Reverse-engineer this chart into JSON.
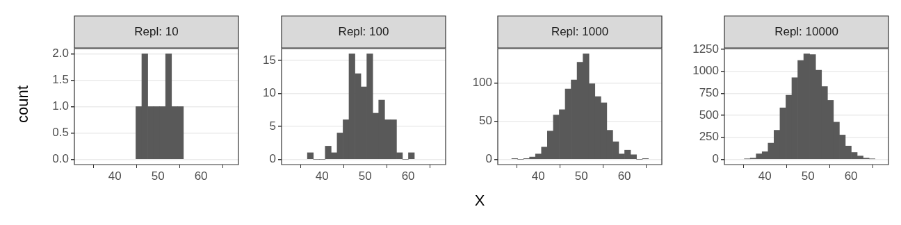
{
  "chart_data": [
    {
      "type": "histogram",
      "title": "Repl: 10",
      "ylabel": "count",
      "color": "#595959",
      "grid": "y",
      "xlim": [
        30.6,
        68.7
      ],
      "xticks": [
        40,
        50,
        60
      ],
      "ylim": [
        -0.1,
        2.1
      ],
      "yticks": [
        {
          "value": 0,
          "label": "0.0"
        },
        {
          "value": 0.5,
          "label": "0.5"
        },
        {
          "value": 1,
          "label": "1.0"
        },
        {
          "value": 1.5,
          "label": "1.5"
        },
        {
          "value": 2,
          "label": "2.0"
        }
      ],
      "bins": [
        44.88,
        46.26,
        47.64,
        49.02,
        50.4,
        51.78,
        53.16,
        54.54,
        55.92
      ],
      "values": [
        1,
        2,
        1,
        1,
        1,
        2,
        1,
        1
      ]
    },
    {
      "type": "histogram",
      "title": "Repl: 100",
      "color": "#595959",
      "grid": "y",
      "xlim": [
        30.6,
        68.7
      ],
      "xticks": [
        40,
        50,
        60
      ],
      "ylim": [
        -0.8,
        16.8
      ],
      "yticks": [
        0,
        5,
        10,
        15
      ],
      "bins": [
        36.6,
        37.98,
        39.36,
        40.74,
        42.12,
        43.5,
        44.88,
        46.26,
        47.64,
        49.02,
        50.4,
        51.78,
        53.16,
        54.54,
        55.92,
        57.3,
        58.68,
        60.06,
        61.44
      ],
      "values": [
        1,
        0,
        0,
        2,
        1,
        4,
        6,
        16,
        13,
        11,
        16,
        7,
        9,
        6,
        6,
        1,
        0,
        1
      ]
    },
    {
      "type": "histogram",
      "title": "Repl: 1000",
      "xlabel": "X",
      "color": "#595959",
      "grid": "y",
      "xlim": [
        30.6,
        68.7
      ],
      "xticks": [
        40,
        50,
        60
      ],
      "ylim": [
        -6.9,
        144.9
      ],
      "yticks": [
        0,
        50,
        100
      ],
      "bins": [
        33.84,
        35.22,
        36.6,
        37.98,
        39.36,
        40.74,
        42.12,
        43.5,
        44.88,
        46.26,
        47.64,
        49.02,
        50.4,
        51.78,
        53.16,
        54.54,
        55.92,
        57.3,
        58.68,
        60.06,
        61.44,
        62.82,
        64.2,
        65.58
      ],
      "values": [
        1,
        0,
        1,
        3,
        7,
        16,
        37,
        58,
        65,
        92,
        104,
        127,
        138,
        99,
        82,
        74,
        38,
        23,
        7,
        12,
        6,
        0,
        1
      ]
    },
    {
      "type": "histogram",
      "title": "Repl: 10000",
      "color": "#595959",
      "grid": "y",
      "xlim": [
        30.6,
        68.7
      ],
      "xticks": [
        40,
        50,
        60
      ],
      "ylim": [
        -59.85,
        1256.85
      ],
      "yticks": [
        0,
        250,
        500,
        750,
        1000,
        1250
      ],
      "bins": [
        35.22,
        36.6,
        37.98,
        39.36,
        40.74,
        42.12,
        43.5,
        44.88,
        46.26,
        47.64,
        49.02,
        50.4,
        51.78,
        53.16,
        54.54,
        55.92,
        57.3,
        58.68,
        60.06,
        61.44,
        62.82,
        64.2,
        65.58
      ],
      "values": [
        5,
        14,
        62,
        86,
        184,
        330,
        584,
        727,
        927,
        1122,
        1197,
        1189,
        1011,
        827,
        670,
        422,
        276,
        151,
        78,
        38,
        14,
        5
      ]
    }
  ]
}
